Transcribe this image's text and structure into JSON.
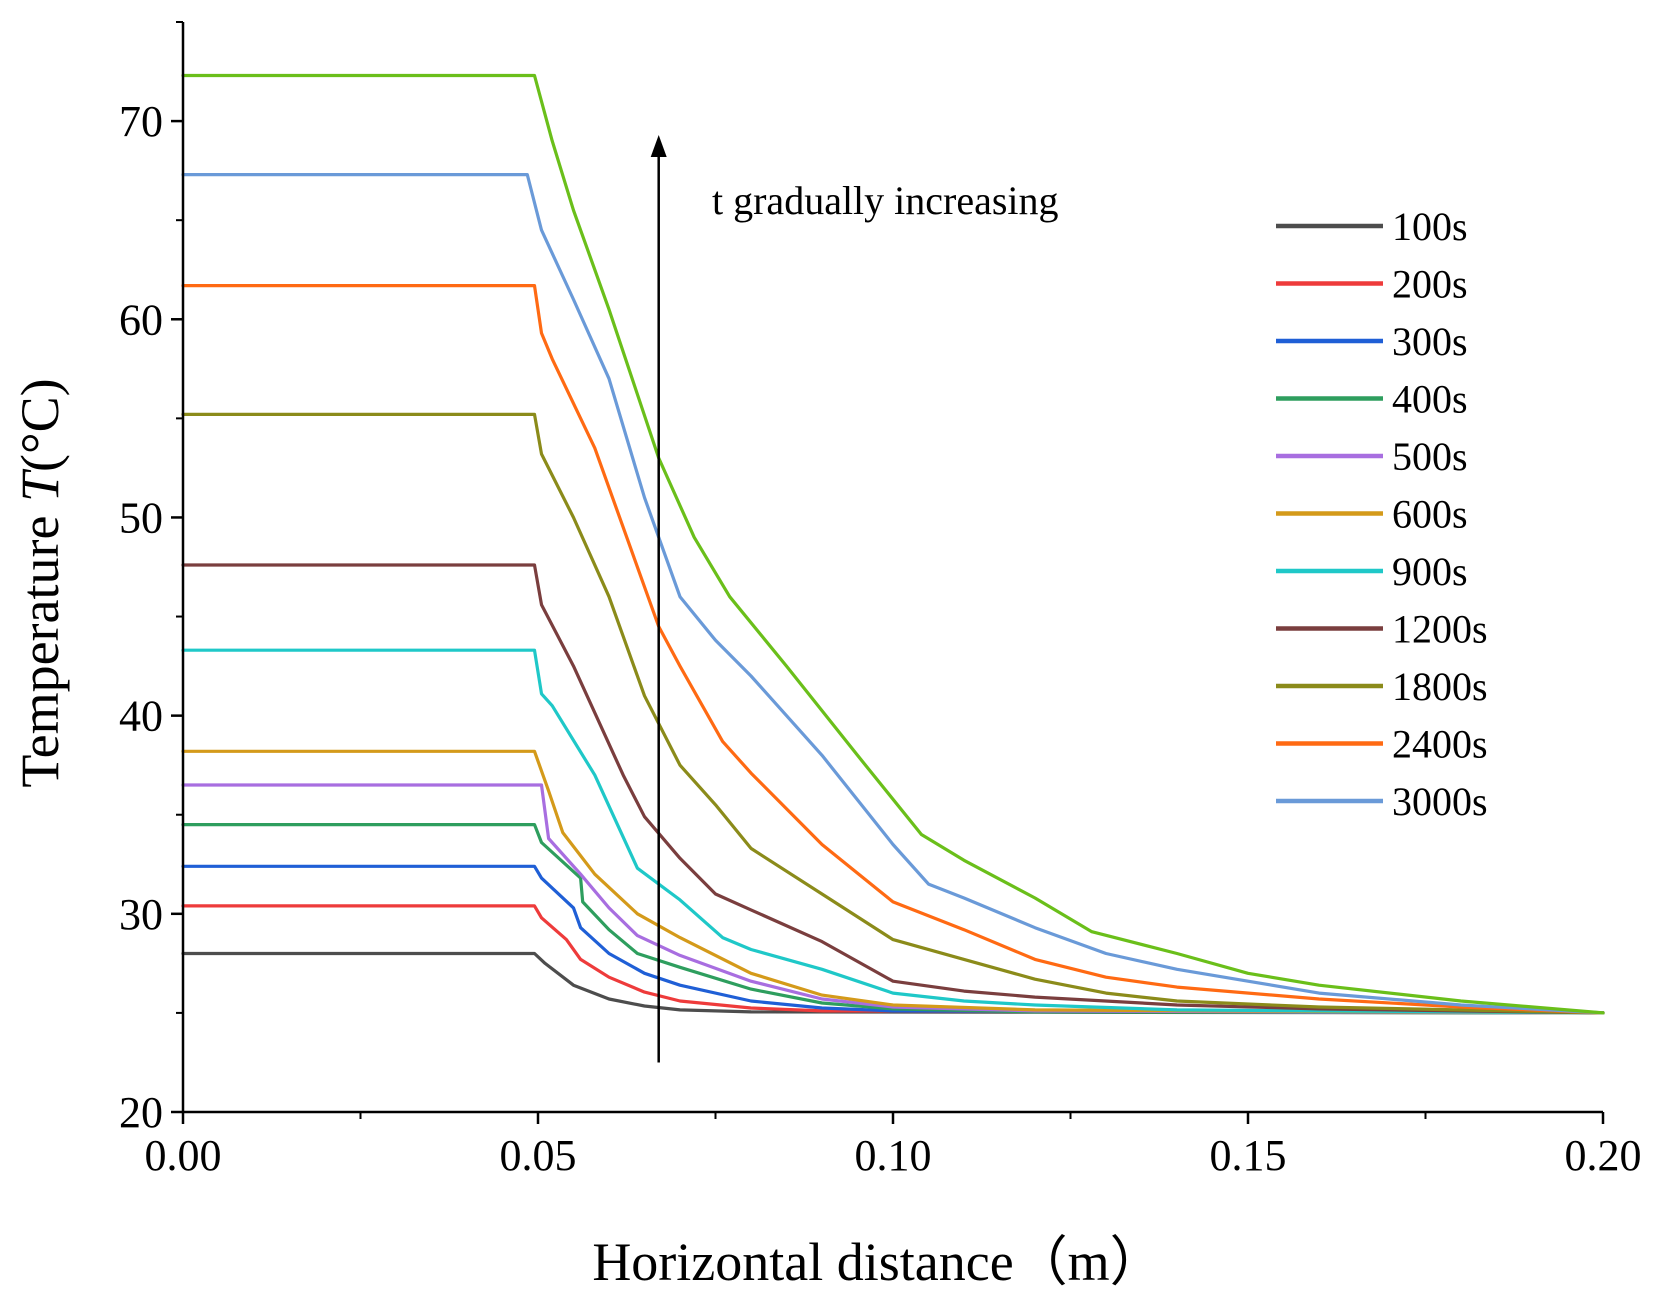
{
  "chart_data": {
    "type": "line",
    "title": "",
    "xlabel": "Horizontal distance（m）",
    "ylabel_prefix": "Temperature ",
    "ylabel_var": "T",
    "ylabel_unit": "(°C)",
    "xlim": [
      0,
      0.2
    ],
    "ylim": [
      20,
      75
    ],
    "x_ticks": [
      0.0,
      0.05,
      0.1,
      0.15,
      0.2
    ],
    "x_tick_labels": [
      "0.00",
      "0.05",
      "0.10",
      "0.15",
      "0.20"
    ],
    "x_minor_ticks": [
      0.025,
      0.075,
      0.125,
      0.175
    ],
    "y_ticks": [
      20,
      30,
      40,
      50,
      60,
      70
    ],
    "y_tick_labels": [
      "20",
      "30",
      "40",
      "50",
      "60",
      "70"
    ],
    "y_minor_ticks": [
      25,
      35,
      45,
      55,
      65,
      75
    ],
    "grid": false,
    "legend_position": "right",
    "annotation": {
      "text": "t gradually increasing",
      "arrow_x": 0.067,
      "arrow_from_y": 22.5,
      "arrow_to_y": 69.3
    },
    "series": [
      {
        "name": "100s",
        "color": "#4d4d4d",
        "points": [
          [
            0,
            28
          ],
          [
            0.0495,
            28
          ],
          [
            0.051,
            27.5
          ],
          [
            0.055,
            26.4
          ],
          [
            0.06,
            25.7
          ],
          [
            0.065,
            25.35
          ],
          [
            0.07,
            25.15
          ],
          [
            0.08,
            25.05
          ],
          [
            0.2,
            25
          ]
        ]
      },
      {
        "name": "200s",
        "color": "#ee3b3b",
        "points": [
          [
            0,
            30.4
          ],
          [
            0.0495,
            30.4
          ],
          [
            0.0505,
            29.8
          ],
          [
            0.054,
            28.7
          ],
          [
            0.056,
            27.7
          ],
          [
            0.06,
            26.8
          ],
          [
            0.065,
            26.05
          ],
          [
            0.07,
            25.6
          ],
          [
            0.08,
            25.25
          ],
          [
            0.09,
            25.1
          ],
          [
            0.2,
            25
          ]
        ]
      },
      {
        "name": "300s",
        "color": "#1f5fd6",
        "points": [
          [
            0,
            32.4
          ],
          [
            0.0495,
            32.4
          ],
          [
            0.0505,
            31.8
          ],
          [
            0.055,
            30.3
          ],
          [
            0.056,
            29.3
          ],
          [
            0.06,
            28
          ],
          [
            0.065,
            27
          ],
          [
            0.07,
            26.4
          ],
          [
            0.08,
            25.6
          ],
          [
            0.09,
            25.25
          ],
          [
            0.1,
            25.1
          ],
          [
            0.2,
            25
          ]
        ]
      },
      {
        "name": "400s",
        "color": "#2e9e5e",
        "points": [
          [
            0,
            34.5
          ],
          [
            0.0495,
            34.5
          ],
          [
            0.0505,
            33.6
          ],
          [
            0.056,
            31.8
          ],
          [
            0.0563,
            30.6
          ],
          [
            0.06,
            29.2
          ],
          [
            0.064,
            28
          ],
          [
            0.07,
            27.3
          ],
          [
            0.08,
            26.2
          ],
          [
            0.09,
            25.5
          ],
          [
            0.1,
            25.2
          ],
          [
            0.12,
            25.05
          ],
          [
            0.2,
            25
          ]
        ]
      },
      {
        "name": "500s",
        "color": "#a86ee0",
        "points": [
          [
            0,
            36.5
          ],
          [
            0.0505,
            36.5
          ],
          [
            0.0515,
            33.8
          ],
          [
            0.056,
            32
          ],
          [
            0.06,
            30.3
          ],
          [
            0.064,
            28.9
          ],
          [
            0.07,
            27.9
          ],
          [
            0.08,
            26.6
          ],
          [
            0.09,
            25.7
          ],
          [
            0.1,
            25.3
          ],
          [
            0.12,
            25.1
          ],
          [
            0.2,
            25
          ]
        ]
      },
      {
        "name": "600s",
        "color": "#d49a1a",
        "points": [
          [
            0,
            38.2
          ],
          [
            0.0495,
            38.2
          ],
          [
            0.0515,
            36.2
          ],
          [
            0.0535,
            34.1
          ],
          [
            0.058,
            32
          ],
          [
            0.064,
            30
          ],
          [
            0.07,
            28.8
          ],
          [
            0.08,
            27
          ],
          [
            0.09,
            25.9
          ],
          [
            0.1,
            25.4
          ],
          [
            0.12,
            25.15
          ],
          [
            0.2,
            25
          ]
        ]
      },
      {
        "name": "900s",
        "color": "#1fc8c8",
        "points": [
          [
            0,
            43.3
          ],
          [
            0.0495,
            43.3
          ],
          [
            0.0505,
            41.1
          ],
          [
            0.052,
            40.5
          ],
          [
            0.058,
            37
          ],
          [
            0.064,
            32.3
          ],
          [
            0.07,
            30.7
          ],
          [
            0.076,
            28.8
          ],
          [
            0.08,
            28.2
          ],
          [
            0.09,
            27.2
          ],
          [
            0.1,
            26
          ],
          [
            0.11,
            25.6
          ],
          [
            0.12,
            25.4
          ],
          [
            0.14,
            25.15
          ],
          [
            0.2,
            25
          ]
        ]
      },
      {
        "name": "1200s",
        "color": "#7a3e3e",
        "points": [
          [
            0,
            47.6
          ],
          [
            0.0495,
            47.6
          ],
          [
            0.0505,
            45.6
          ],
          [
            0.055,
            42.5
          ],
          [
            0.062,
            37
          ],
          [
            0.065,
            34.9
          ],
          [
            0.07,
            32.8
          ],
          [
            0.075,
            31
          ],
          [
            0.08,
            30.2
          ],
          [
            0.09,
            28.6
          ],
          [
            0.1,
            26.6
          ],
          [
            0.11,
            26.1
          ],
          [
            0.12,
            25.8
          ],
          [
            0.14,
            25.4
          ],
          [
            0.16,
            25.2
          ],
          [
            0.2,
            25
          ]
        ]
      },
      {
        "name": "1800s",
        "color": "#8b8b1a",
        "points": [
          [
            0,
            55.2
          ],
          [
            0.0495,
            55.2
          ],
          [
            0.0505,
            53.2
          ],
          [
            0.055,
            50
          ],
          [
            0.06,
            46
          ],
          [
            0.065,
            41
          ],
          [
            0.07,
            37.5
          ],
          [
            0.075,
            35.5
          ],
          [
            0.08,
            33.3
          ],
          [
            0.09,
            31
          ],
          [
            0.1,
            28.7
          ],
          [
            0.11,
            27.7
          ],
          [
            0.12,
            26.7
          ],
          [
            0.13,
            26
          ],
          [
            0.14,
            25.6
          ],
          [
            0.16,
            25.3
          ],
          [
            0.2,
            25
          ]
        ]
      },
      {
        "name": "2400s",
        "color": "#ff6a13",
        "points": [
          [
            0,
            61.7
          ],
          [
            0.0495,
            61.7
          ],
          [
            0.0505,
            59.3
          ],
          [
            0.052,
            58
          ],
          [
            0.058,
            53.5
          ],
          [
            0.063,
            48.5
          ],
          [
            0.067,
            44.5
          ],
          [
            0.07,
            42.5
          ],
          [
            0.076,
            38.7
          ],
          [
            0.08,
            37.1
          ],
          [
            0.09,
            33.5
          ],
          [
            0.1,
            30.6
          ],
          [
            0.11,
            29.2
          ],
          [
            0.12,
            27.7
          ],
          [
            0.13,
            26.8
          ],
          [
            0.14,
            26.3
          ],
          [
            0.16,
            25.7
          ],
          [
            0.18,
            25.3
          ],
          [
            0.2,
            25
          ]
        ]
      },
      {
        "name": "3000s",
        "color": "#6a9ad8",
        "points": [
          [
            0,
            67.3
          ],
          [
            0.0485,
            67.3
          ],
          [
            0.0505,
            64.5
          ],
          [
            0.055,
            61
          ],
          [
            0.06,
            57
          ],
          [
            0.065,
            51
          ],
          [
            0.07,
            46
          ],
          [
            0.075,
            43.8
          ],
          [
            0.08,
            42
          ],
          [
            0.09,
            38
          ],
          [
            0.1,
            33.5
          ],
          [
            0.105,
            31.5
          ],
          [
            0.11,
            30.8
          ],
          [
            0.12,
            29.3
          ],
          [
            0.13,
            28
          ],
          [
            0.14,
            27.2
          ],
          [
            0.15,
            26.6
          ],
          [
            0.16,
            26
          ],
          [
            0.18,
            25.4
          ],
          [
            0.2,
            25
          ]
        ]
      },
      {
        "name": "",
        "color": "#6abf1a",
        "points": [
          [
            0,
            72.3
          ],
          [
            0.0495,
            72.3
          ],
          [
            0.052,
            69
          ],
          [
            0.055,
            65.5
          ],
          [
            0.06,
            60.5
          ],
          [
            0.067,
            53
          ],
          [
            0.072,
            49
          ],
          [
            0.077,
            46
          ],
          [
            0.085,
            42.5
          ],
          [
            0.095,
            38
          ],
          [
            0.104,
            34
          ],
          [
            0.11,
            32.7
          ],
          [
            0.12,
            30.8
          ],
          [
            0.128,
            29.1
          ],
          [
            0.14,
            28
          ],
          [
            0.15,
            27
          ],
          [
            0.16,
            26.4
          ],
          [
            0.18,
            25.6
          ],
          [
            0.2,
            25
          ]
        ]
      }
    ]
  }
}
